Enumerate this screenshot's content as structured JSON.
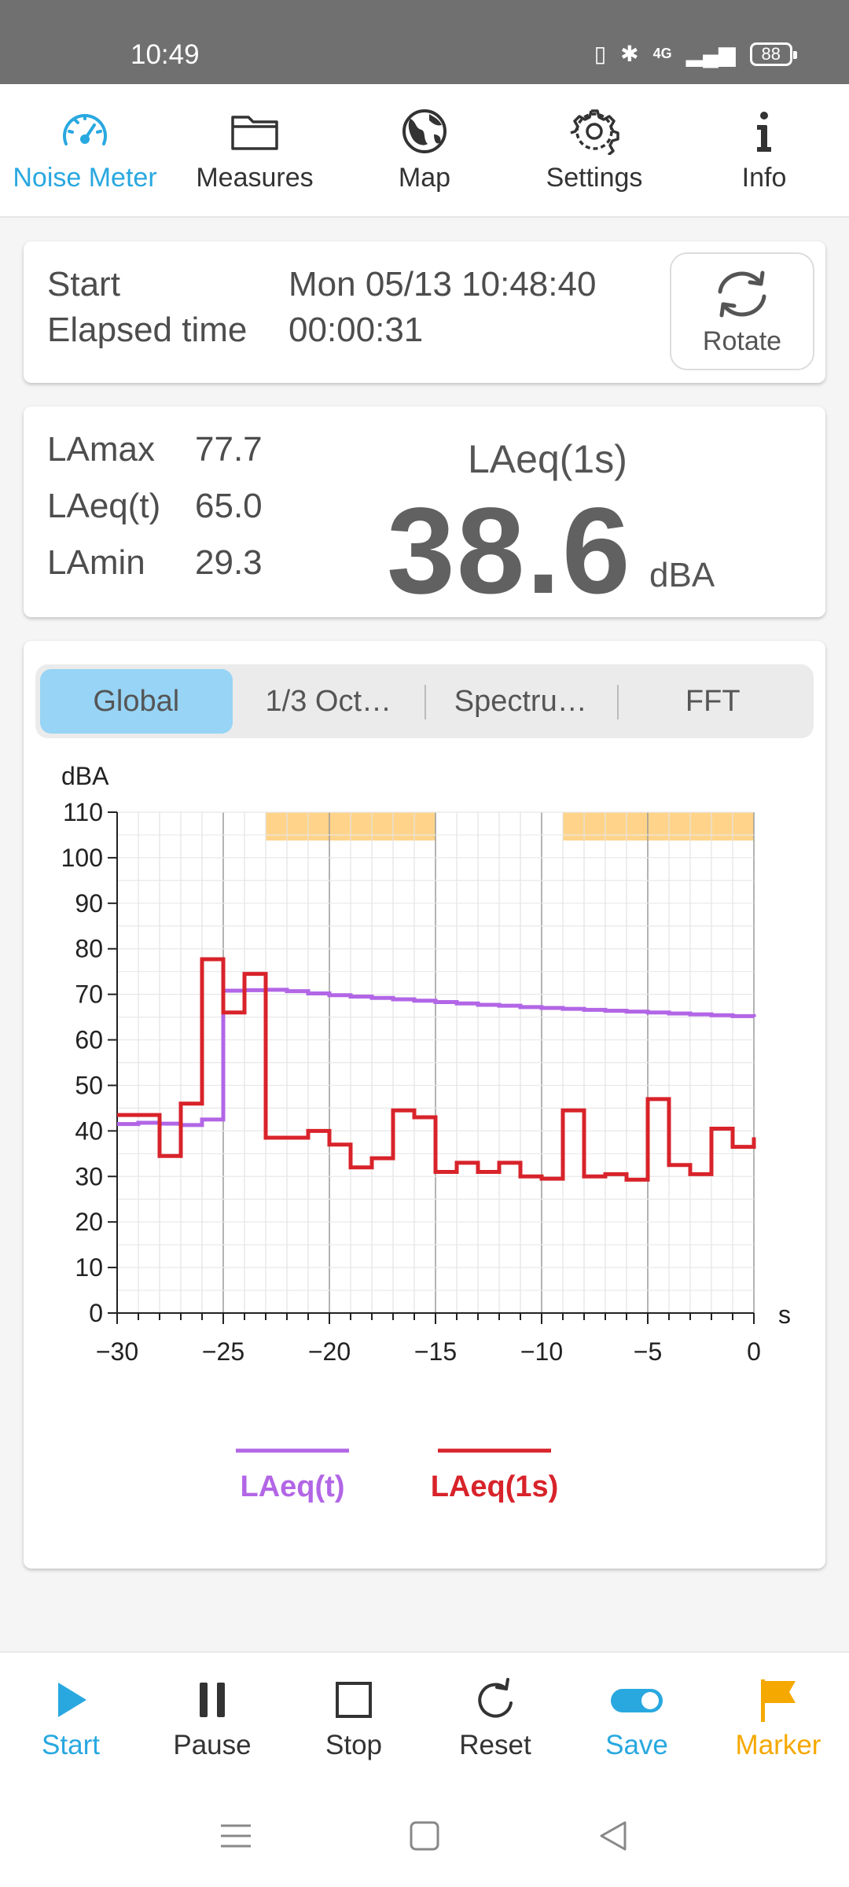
{
  "status_bar": {
    "time": "10:49",
    "network": "4G",
    "battery": "88"
  },
  "colors": {
    "accent": "#29a8e0",
    "laeq_t": "#b266e6",
    "laeq_1s": "#d8232a",
    "marker": "#f5a800",
    "highlight": "#ffd48a"
  },
  "top_nav": {
    "items": [
      {
        "label": "Noise Meter",
        "icon": "gauge-icon",
        "active": true
      },
      {
        "label": "Measures",
        "icon": "folder-icon"
      },
      {
        "label": "Map",
        "icon": "globe-icon"
      },
      {
        "label": "Settings",
        "icon": "gear-icon"
      },
      {
        "label": "Info",
        "icon": "info-icon"
      }
    ]
  },
  "time_card": {
    "start_label": "Start",
    "start_value": "Mon 05/13 10:48:40",
    "elapsed_label": "Elapsed time",
    "elapsed_value": "00:00:31",
    "rotate_label": "Rotate"
  },
  "levels": {
    "lamax_label": "LAmax",
    "lamax_value": "77.7",
    "laeqt_label": "LAeq(t)",
    "laeqt_value": "65.0",
    "lamin_label": "LAmin",
    "lamin_value": "29.3",
    "current_title": "LAeq(1s)",
    "current_value": "38.6",
    "current_unit": "dBA"
  },
  "chart_tabs": [
    "Global",
    "1/3 Oct…",
    "Spectru…",
    "FFT"
  ],
  "chart_data": {
    "type": "line",
    "ylabel": "dBA",
    "xlabel": "s",
    "xlim": [
      -30,
      0
    ],
    "ylim": [
      0,
      110
    ],
    "x_ticks": [
      "−30",
      "−25",
      "−20",
      "−15",
      "−10",
      "−5",
      "0"
    ],
    "y_ticks": [
      "0",
      "10",
      "20",
      "30",
      "40",
      "50",
      "60",
      "70",
      "80",
      "90",
      "100",
      "110"
    ],
    "grid": true,
    "highlight_ranges": [
      [
        -23,
        -15
      ],
      [
        -9,
        0
      ]
    ],
    "legend_position": "bottom-center",
    "series": [
      {
        "name": "LAeq(t)",
        "step": true,
        "x": [
          -30,
          -29,
          -28,
          -27,
          -26,
          -25,
          -24,
          -23,
          -22,
          -21,
          -20,
          -19,
          -18,
          -17,
          -16,
          -15,
          -14,
          -13,
          -12,
          -11,
          -10,
          -9,
          -8,
          -7,
          -6,
          -5,
          -4,
          -3,
          -2,
          -1,
          0
        ],
        "values": [
          41.5,
          41.8,
          41.6,
          41.3,
          42.5,
          70.8,
          70.9,
          71.0,
          70.7,
          70.2,
          69.8,
          69.5,
          69.2,
          68.9,
          68.6,
          68.3,
          68.0,
          67.7,
          67.5,
          67.2,
          67.0,
          66.8,
          66.6,
          66.4,
          66.2,
          66.0,
          65.8,
          65.6,
          65.4,
          65.2,
          65.0
        ]
      },
      {
        "name": "LAeq(1s)",
        "step": true,
        "x": [
          -30,
          -29,
          -28,
          -27,
          -26,
          -25,
          -24,
          -23,
          -22,
          -21,
          -20,
          -19,
          -18,
          -17,
          -16,
          -15,
          -14,
          -13,
          -12,
          -11,
          -10,
          -9,
          -8,
          -7,
          -6,
          -5,
          -4,
          -3,
          -2,
          -1,
          0
        ],
        "values": [
          43.5,
          43.5,
          34.5,
          46,
          77.7,
          66,
          74.5,
          38.5,
          38.5,
          40,
          37,
          32,
          34,
          44.5,
          43,
          31,
          33,
          31,
          33,
          30,
          29.5,
          44.5,
          30,
          30.5,
          29.3,
          47,
          32.5,
          30.5,
          40.5,
          36.5,
          38.6
        ]
      }
    ]
  },
  "bottom_bar": {
    "items": [
      {
        "label": "Start",
        "icon": "play-icon"
      },
      {
        "label": "Pause",
        "icon": "pause-icon"
      },
      {
        "label": "Stop",
        "icon": "stop-icon"
      },
      {
        "label": "Reset",
        "icon": "reset-icon"
      },
      {
        "label": "Save",
        "icon": "toggle-icon"
      },
      {
        "label": "Marker",
        "icon": "flag-icon"
      }
    ]
  }
}
